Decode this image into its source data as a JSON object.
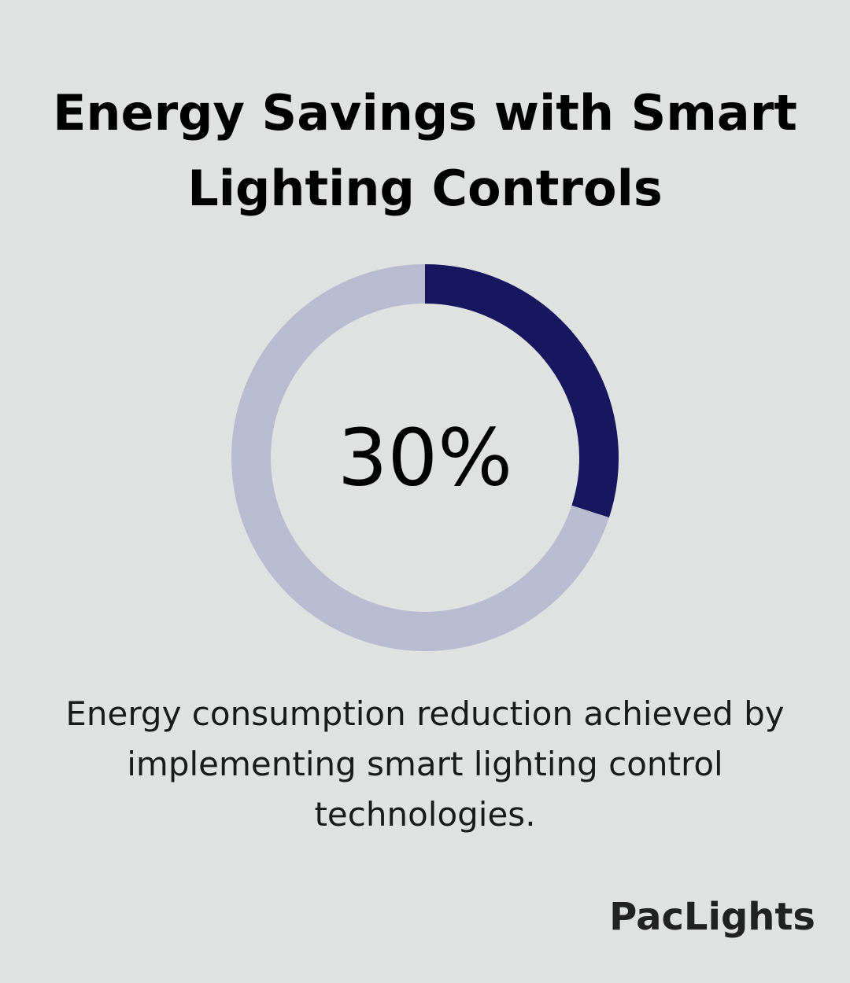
{
  "title": "Energy Savings with Smart Lighting Controls",
  "caption": "Energy consumption reduction achieved by implementing smart lighting control technologies.",
  "logo": "PacLights",
  "colors": {
    "background": "#e0e2e1",
    "accent": "#16175e",
    "track": "#b9bbd0"
  },
  "chart_data": {
    "type": "pie",
    "style": "donut",
    "center_label": "30%",
    "values": [
      30,
      70
    ],
    "title": "Energy Savings with Smart Lighting Controls"
  }
}
